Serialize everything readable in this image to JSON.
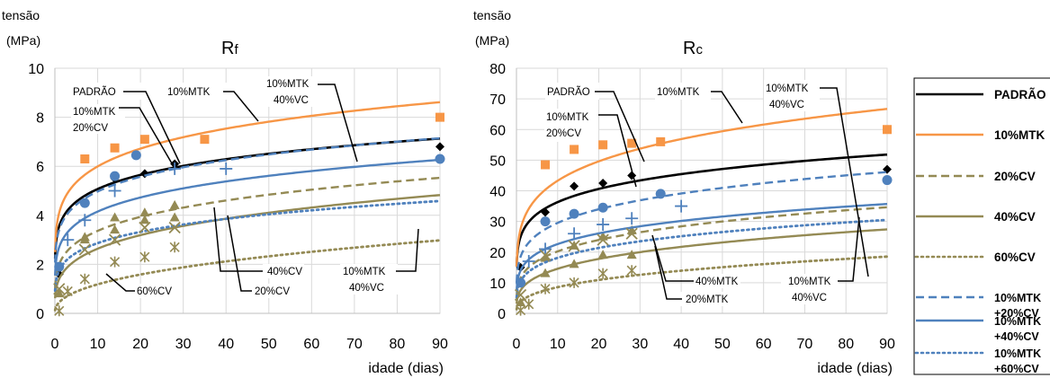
{
  "chart_data": [
    {
      "type": "line",
      "title": "Rf",
      "title_main": "R",
      "title_sub": "f",
      "ylabel_line1": "tensão",
      "ylabel_line2": "(MPa)",
      "xlabel": "idade (dias)",
      "xlim": [
        0,
        90
      ],
      "ylim": [
        0,
        10
      ],
      "xticks": [
        0,
        10,
        20,
        30,
        40,
        50,
        60,
        70,
        80,
        90
      ],
      "yticks": [
        0,
        2,
        4,
        6,
        8,
        10
      ],
      "grid": true,
      "series": [
        {
          "key": "padrao",
          "trend": {
            "a": 3.55,
            "b": 0.155
          },
          "points": [
            [
              1,
              1.6
            ],
            [
              7,
              4.5
            ],
            [
              14,
              5.5
            ],
            [
              21,
              5.7
            ],
            [
              28,
              6.1
            ],
            [
              90,
              6.8
            ]
          ]
        },
        {
          "key": "mtk10",
          "trend": {
            "a": 4.1,
            "b": 0.165
          },
          "points": [
            [
              7,
              6.3
            ],
            [
              14,
              6.75
            ],
            [
              21,
              7.1
            ],
            [
              35,
              7.1
            ],
            [
              90,
              8.0
            ]
          ]
        },
        {
          "key": "cv20",
          "trend": {
            "a": 2.0,
            "b": 0.226
          },
          "points": [
            [
              7,
              3.1
            ],
            [
              14,
              3.9
            ],
            [
              21,
              4.1
            ],
            [
              28,
              4.4
            ]
          ]
        },
        {
          "key": "cv40",
          "trend": {
            "a": 1.4,
            "b": 0.275
          },
          "points": [
            [
              1,
              0.8
            ],
            [
              7,
              3.0
            ],
            [
              14,
              3.4
            ],
            [
              21,
              3.8
            ],
            [
              28,
              3.9
            ]
          ]
        },
        {
          "key": "cv60",
          "trend": {
            "a": 0.45,
            "b": 0.42
          },
          "points": [
            [
              1,
              0.1
            ],
            [
              3,
              0.9
            ],
            [
              7,
              1.4
            ],
            [
              14,
              2.1
            ],
            [
              21,
              2.3
            ],
            [
              28,
              2.7
            ]
          ]
        },
        {
          "key": "mtk10cv20",
          "trend": {
            "a": 3.4,
            "b": 0.165
          },
          "points": [
            [
              3,
              3.0
            ],
            [
              7,
              3.8
            ],
            [
              14,
              5.0
            ],
            [
              28,
              5.9
            ],
            [
              40,
              5.9
            ]
          ]
        },
        {
          "key": "mtk10cv40",
          "trend": {
            "a": 2.7,
            "b": 0.187
          },
          "points": [
            [
              1,
              1.9
            ],
            [
              7,
              4.5
            ],
            [
              14,
              5.6
            ],
            [
              19,
              6.45
            ],
            [
              90,
              6.3
            ]
          ]
        },
        {
          "key": "mtk10cv60",
          "trend": {
            "a": 1.75,
            "b": 0.214
          },
          "points": [
            [
              1,
              1.0
            ],
            [
              7,
              2.6
            ],
            [
              14,
              3.0
            ],
            [
              21,
              3.5
            ],
            [
              28,
              3.5
            ]
          ]
        }
      ],
      "annotations": [
        "PADRÃO",
        "10%MTK",
        "10%MTK",
        "20%CV",
        "10%MTK",
        "40%VC",
        "40%CV",
        "20%CV",
        "60%CV",
        "10%MTK",
        "40%VC"
      ]
    },
    {
      "type": "line",
      "title": "Rc",
      "title_main": "R",
      "title_sub": "c",
      "ylabel_line1": "tensão",
      "ylabel_line2": "(MPa)",
      "xlabel": "idade (dias)",
      "xlim": [
        0,
        90
      ],
      "ylim": [
        0,
        80
      ],
      "xticks": [
        0,
        10,
        20,
        30,
        40,
        50,
        60,
        70,
        80,
        90
      ],
      "yticks": [
        0,
        10,
        20,
        30,
        40,
        50,
        60,
        70,
        80
      ],
      "grid": true,
      "series": [
        {
          "key": "padrao",
          "trend": {
            "a": 25.0,
            "b": 0.162
          },
          "points": [
            [
              1,
              15
            ],
            [
              7,
              33
            ],
            [
              14,
              41.5
            ],
            [
              21,
              42.5
            ],
            [
              28,
              45
            ],
            [
              90,
              47
            ]
          ]
        },
        {
          "key": "mtk10",
          "trend": {
            "a": 27.5,
            "b": 0.197
          },
          "points": [
            [
              7,
              48.5
            ],
            [
              14,
              53.5
            ],
            [
              21,
              55
            ],
            [
              28,
              55.5
            ],
            [
              35,
              56
            ],
            [
              90,
              60
            ]
          ]
        },
        {
          "key": "cv20",
          "trend": {
            "a": 11.5,
            "b": 0.245
          },
          "points": [
            [
              7,
              18
            ],
            [
              14,
              22
            ],
            [
              21,
              25
            ],
            [
              28,
              27
            ]
          ]
        },
        {
          "key": "cv40",
          "trend": {
            "a": 7.5,
            "b": 0.288
          },
          "points": [
            [
              1,
              3.5
            ],
            [
              7,
              13
            ],
            [
              14,
              16
            ],
            [
              21,
              19
            ],
            [
              28,
              19
            ]
          ]
        },
        {
          "key": "cv60",
          "trend": {
            "a": 3.8,
            "b": 0.352
          },
          "points": [
            [
              1,
              1
            ],
            [
              3,
              3
            ],
            [
              7,
              8
            ],
            [
              14,
              10
            ],
            [
              21,
              13
            ],
            [
              28,
              14
            ]
          ]
        },
        {
          "key": "mtk10cv20",
          "trend": {
            "a": 18.5,
            "b": 0.203
          },
          "points": [
            [
              3,
              17
            ],
            [
              7,
              21
            ],
            [
              14,
              26
            ],
            [
              21,
              29
            ],
            [
              28,
              31
            ],
            [
              40,
              35
            ]
          ]
        },
        {
          "key": "mtk10cv40",
          "trend": {
            "a": 14.0,
            "b": 0.208
          },
          "points": [
            [
              1,
              10
            ],
            [
              7,
              30
            ],
            [
              14,
              32.5
            ],
            [
              21,
              34.5
            ],
            [
              35,
              39
            ],
            [
              90,
              43.5
            ]
          ]
        },
        {
          "key": "mtk10cv60",
          "trend": {
            "a": 10.5,
            "b": 0.237
          },
          "points": [
            [
              1,
              6
            ],
            [
              7,
              19
            ],
            [
              14,
              22
            ],
            [
              21,
              24
            ],
            [
              28,
              26
            ]
          ]
        }
      ],
      "annotations": [
        "PADRÃO",
        "10%MTK",
        "10%MTK",
        "20%CV",
        "10%MTK",
        "40%VC",
        "40%MTK",
        "20%MTK",
        "10%MTK",
        "40%VC"
      ]
    }
  ],
  "legend": {
    "items": [
      {
        "key": "padrao",
        "lines": [
          "PADRÃO"
        ],
        "color": "#000000",
        "dash": "solid"
      },
      {
        "key": "mtk10",
        "lines": [
          "10%MTK"
        ],
        "color": "#F79646",
        "dash": "solid"
      },
      {
        "key": "cv20",
        "lines": [
          "20%CV"
        ],
        "color": "#948A54",
        "dash": "dashed"
      },
      {
        "key": "cv40",
        "lines": [
          "40%CV"
        ],
        "color": "#948A54",
        "dash": "solid"
      },
      {
        "key": "cv60",
        "lines": [
          "60%CV"
        ],
        "color": "#948A54",
        "dash": "dotted"
      },
      {
        "key": "mtk10cv20",
        "lines": [
          "10%MTK",
          "+20%CV"
        ],
        "color": "#4F81BD",
        "dash": "dashed"
      },
      {
        "key": "mtk10cv40",
        "lines": [
          "10%MTK",
          "+40%CV"
        ],
        "color": "#4F81BD",
        "dash": "solid"
      },
      {
        "key": "mtk10cv60",
        "lines": [
          "10%MTK",
          "+60%CV"
        ],
        "color": "#4F81BD",
        "dash": "dotted"
      }
    ]
  }
}
